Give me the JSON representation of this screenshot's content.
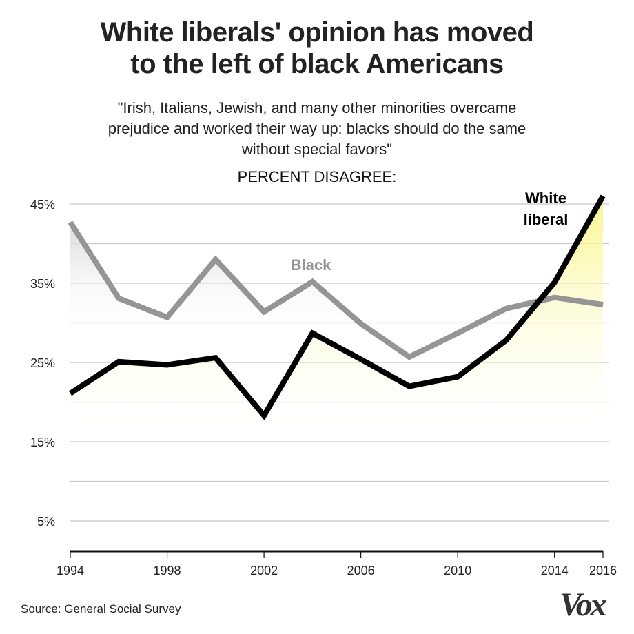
{
  "header": {
    "title_line1": "White liberals' opinion has moved",
    "title_line2": "to the left of black Americans",
    "subtitle_line1": "\"Irish, Italians, Jewish, and many other minorities overcame",
    "subtitle_line2": "prejudice and worked their way up: blacks should do the same",
    "subtitle_line3": "without special favors\"",
    "measure_label": "PERCENT DISAGREE:"
  },
  "footer": {
    "source": "Source: General Social Survey",
    "logo": "Vox"
  },
  "colors": {
    "black_series": "#959595",
    "white_liberal_series": "#000000",
    "black_fill": "#d6d6d6",
    "white_liberal_fill": "#fbf68e",
    "gridline": "#c8c8c8",
    "axis": "#111111"
  },
  "chart_data": {
    "type": "line",
    "title": "White liberals' opinion has moved to the left of black Americans",
    "subtitle": "\"Irish, Italians, Jewish, and many other minorities overcame prejudice and worked their way up: blacks should do the same without special favors\"",
    "ylabel": "PERCENT DISAGREE:",
    "xlabel": "",
    "x": [
      1994,
      1996,
      1998,
      2000,
      2002,
      2004,
      2006,
      2008,
      2010,
      2012,
      2014,
      2016
    ],
    "xlim": [
      1994,
      2016
    ],
    "ylim": [
      1,
      46
    ],
    "x_ticks": [
      1994,
      1998,
      2002,
      2006,
      2010,
      2014,
      2016
    ],
    "x_tick_labels": [
      "1994",
      "1998",
      "2002",
      "2006",
      "2010",
      "2014",
      "2016"
    ],
    "y_gridlines": [
      5,
      10,
      15,
      20,
      25,
      30,
      35,
      40,
      45
    ],
    "y_ticks": [
      5,
      15,
      25,
      35,
      45
    ],
    "y_tick_labels": [
      "5%",
      "15%",
      "25%",
      "35%",
      "45%"
    ],
    "grid": true,
    "series": [
      {
        "name": "Black",
        "label": "Black",
        "values": [
          42.7,
          33.1,
          30.7,
          38.0,
          31.4,
          35.2,
          29.9,
          25.7,
          28.7,
          31.8,
          33.2,
          32.3
        ]
      },
      {
        "name": "White liberal",
        "label_line1": "White",
        "label_line2": "liberal",
        "values": [
          21.1,
          25.1,
          24.7,
          25.6,
          18.3,
          28.7,
          25.4,
          22.0,
          23.2,
          27.8,
          35.1,
          46.0
        ]
      }
    ],
    "legend": "inline-labels"
  }
}
